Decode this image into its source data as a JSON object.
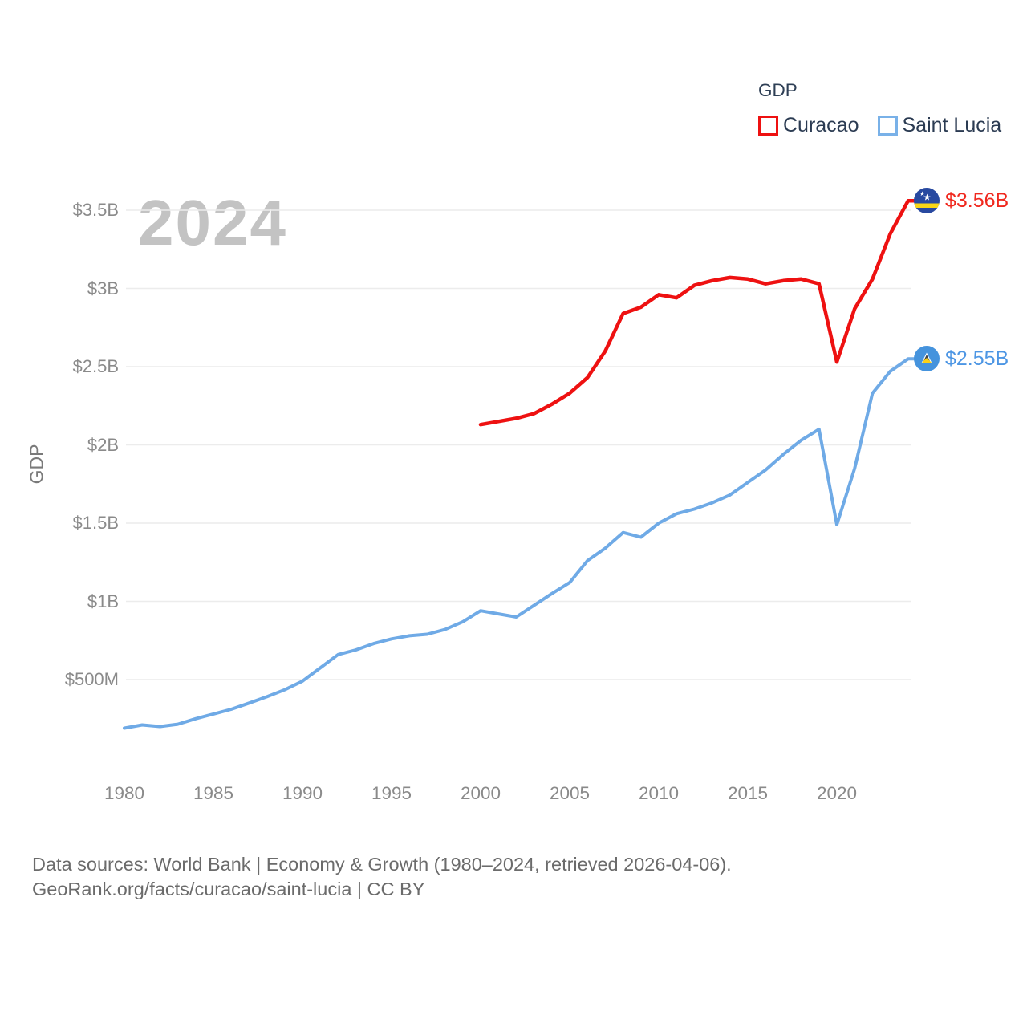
{
  "watermark": "2024",
  "legend": {
    "title": "GDP",
    "items": [
      {
        "label": "Curacao",
        "color": "#ee1111"
      },
      {
        "label": "Saint Lucia",
        "color": "#79b1e8"
      }
    ]
  },
  "y_axis": {
    "label": "GDP",
    "ticks": [
      {
        "label": "$3.5B",
        "value": 3.5
      },
      {
        "label": "$3B",
        "value": 3.0
      },
      {
        "label": "$2.5B",
        "value": 2.5
      },
      {
        "label": "$2B",
        "value": 2.0
      },
      {
        "label": "$1.5B",
        "value": 1.5
      },
      {
        "label": "$1B",
        "value": 1.0
      },
      {
        "label": "$500M",
        "value": 0.5
      }
    ]
  },
  "x_axis": {
    "ticks": [
      1980,
      1985,
      1990,
      1995,
      2000,
      2005,
      2010,
      2015,
      2020
    ]
  },
  "end_labels": [
    {
      "series": "Curacao",
      "text": "$3.56B",
      "color": "#f0281e",
      "flag": "curacao-flag-icon"
    },
    {
      "series": "Saint Lucia",
      "text": "$2.55B",
      "color": "#4d96e4",
      "flag": "saint-lucia-flag-icon"
    }
  ],
  "footer": {
    "line1": "Data sources: World Bank | Economy & Growth (1980–2024, retrieved 2026-04-06).",
    "line2": "GeoRank.org/facts/curacao/saint-lucia | CC BY"
  },
  "chart_data": {
    "type": "line",
    "title": "GDP",
    "ylabel": "GDP",
    "x_range": [
      1980,
      2024
    ],
    "ylim": [
      0,
      3.6
    ],
    "grid": "horizontal",
    "legend_position": "top-right",
    "gridline_values": [
      0.5,
      1.0,
      1.5,
      2.0,
      2.5,
      3.0,
      3.5
    ],
    "units": "billions USD",
    "series": [
      {
        "name": "Saint Lucia",
        "color": "#6faae6",
        "stroke_width": 4,
        "end_label": "$2.55B",
        "years": [
          1980,
          1981,
          1982,
          1983,
          1984,
          1985,
          1986,
          1987,
          1988,
          1989,
          1990,
          1991,
          1992,
          1993,
          1994,
          1995,
          1996,
          1997,
          1998,
          1999,
          2000,
          2001,
          2002,
          2003,
          2004,
          2005,
          2006,
          2007,
          2008,
          2009,
          2010,
          2011,
          2012,
          2013,
          2014,
          2015,
          2016,
          2017,
          2018,
          2019,
          2020,
          2021,
          2022,
          2023,
          2024
        ],
        "values": [
          0.19,
          0.21,
          0.2,
          0.215,
          0.25,
          0.28,
          0.31,
          0.35,
          0.39,
          0.435,
          0.49,
          0.575,
          0.66,
          0.69,
          0.73,
          0.76,
          0.78,
          0.79,
          0.82,
          0.87,
          0.94,
          0.92,
          0.9,
          0.975,
          1.05,
          1.12,
          1.26,
          1.34,
          1.44,
          1.41,
          1.5,
          1.56,
          1.59,
          1.63,
          1.68,
          1.76,
          1.84,
          1.94,
          2.03,
          2.1,
          1.49,
          1.85,
          2.33,
          2.47,
          2.55
        ]
      },
      {
        "name": "Curacao",
        "color": "#ee1111",
        "stroke_width": 4.5,
        "end_label": "$3.56B",
        "years": [
          2000,
          2001,
          2002,
          2003,
          2004,
          2005,
          2006,
          2007,
          2008,
          2009,
          2010,
          2011,
          2012,
          2013,
          2014,
          2015,
          2016,
          2017,
          2018,
          2019,
          2020,
          2021,
          2022,
          2023,
          2024
        ],
        "values": [
          2.13,
          2.15,
          2.17,
          2.2,
          2.26,
          2.33,
          2.43,
          2.6,
          2.84,
          2.88,
          2.96,
          2.94,
          3.02,
          3.05,
          3.07,
          3.06,
          3.03,
          3.05,
          3.06,
          3.03,
          2.53,
          2.87,
          3.06,
          3.35,
          3.56
        ]
      }
    ]
  }
}
